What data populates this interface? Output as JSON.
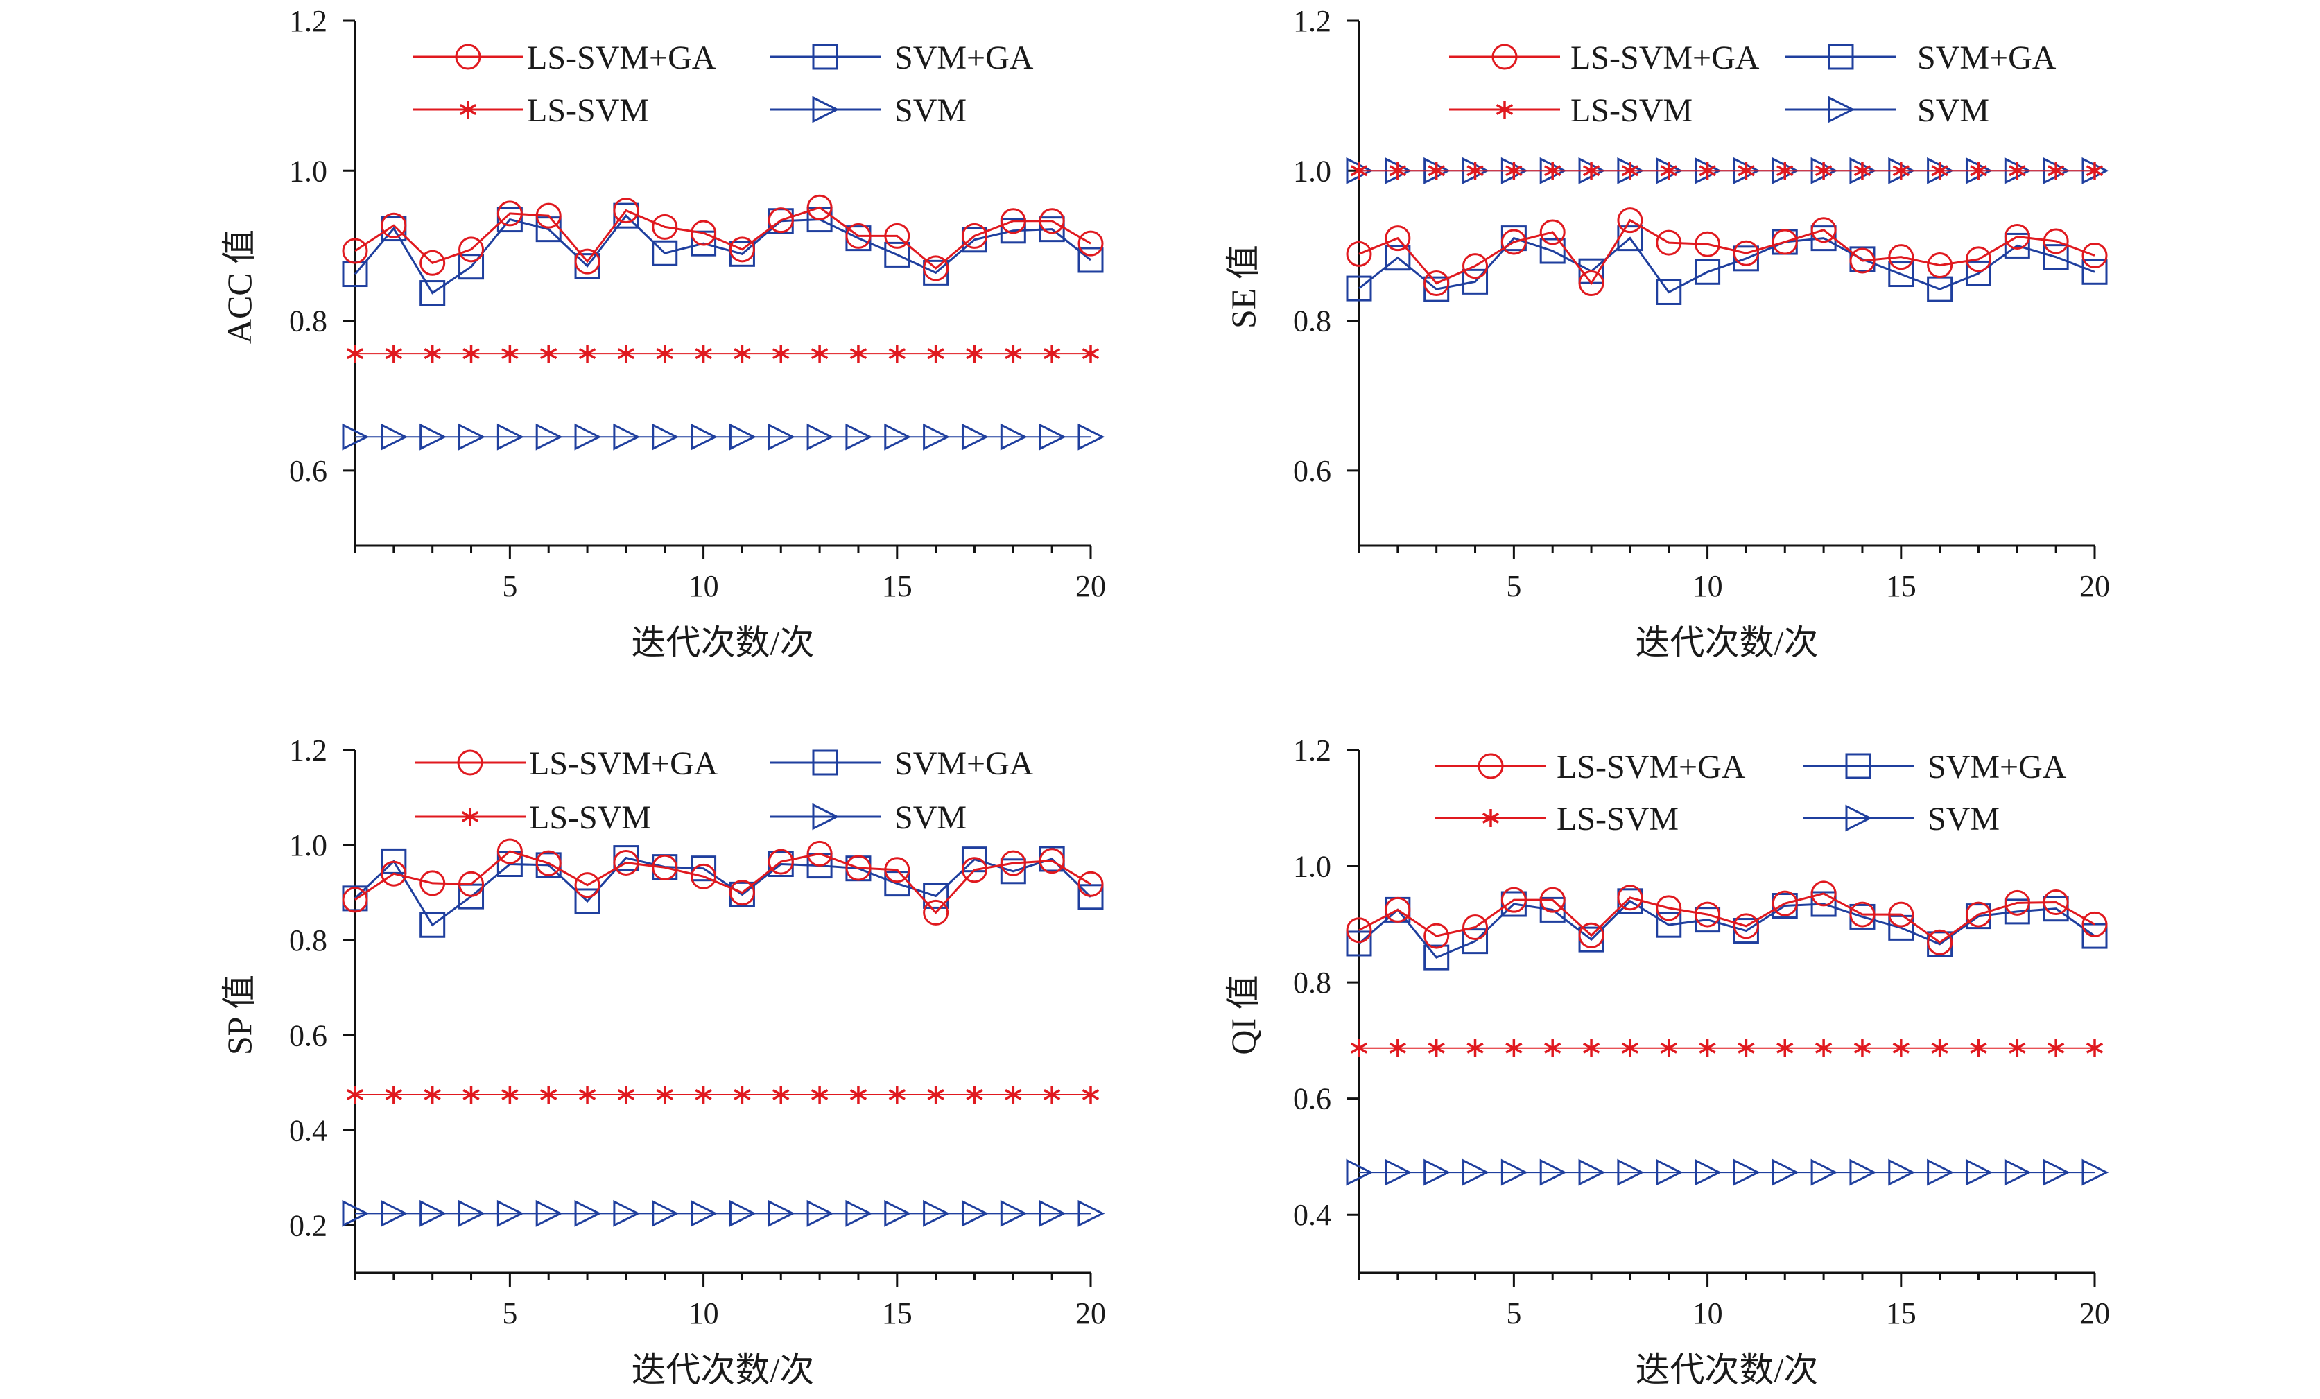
{
  "figure": {
    "colors": {
      "red": "#e0191f",
      "blue": "#1f3f9e",
      "axis": "#111111"
    }
  },
  "chart_data": [
    {
      "type": "line",
      "title": "",
      "xlabel": "迭代次数/次",
      "ylabel": "ACC 值",
      "xlim": [
        1,
        20
      ],
      "ylim": [
        0.5,
        1.2
      ],
      "xticks": [
        "5",
        "10",
        "15",
        "20"
      ],
      "yticks": [
        "0.6",
        "0.8",
        "1.0",
        "1.2"
      ],
      "x": [
        1,
        2,
        3,
        4,
        5,
        6,
        7,
        8,
        9,
        10,
        11,
        12,
        13,
        14,
        15,
        16,
        17,
        18,
        19,
        20
      ],
      "series": [
        {
          "name": "LS-SVM+GA",
          "marker": "circle",
          "color": "#e0191f",
          "values": [
            0.893,
            0.927,
            0.877,
            0.895,
            0.943,
            0.94,
            0.879,
            0.947,
            0.925,
            0.917,
            0.895,
            0.934,
            0.951,
            0.913,
            0.913,
            0.87,
            0.913,
            0.933,
            0.933,
            0.903
          ]
        },
        {
          "name": "SVM+GA",
          "marker": "square",
          "color": "#1f3f9e",
          "values": [
            0.862,
            0.923,
            0.837,
            0.872,
            0.935,
            0.922,
            0.873,
            0.94,
            0.89,
            0.903,
            0.889,
            0.933,
            0.935,
            0.91,
            0.888,
            0.864,
            0.908,
            0.92,
            0.922,
            0.881
          ]
        },
        {
          "name": "LS-SVM",
          "marker": "star",
          "color": "#e0191f",
          "values": [
            0.756,
            0.756,
            0.756,
            0.756,
            0.756,
            0.756,
            0.756,
            0.756,
            0.756,
            0.756,
            0.756,
            0.756,
            0.756,
            0.756,
            0.756,
            0.756,
            0.756,
            0.756,
            0.756,
            0.756
          ]
        },
        {
          "name": "SVM",
          "marker": "triangle-right",
          "color": "#1f3f9e",
          "values": [
            0.645,
            0.645,
            0.645,
            0.645,
            0.645,
            0.645,
            0.645,
            0.645,
            0.645,
            0.645,
            0.645,
            0.645,
            0.645,
            0.645,
            0.645,
            0.645,
            0.645,
            0.645,
            0.645,
            0.645
          ]
        }
      ]
    },
    {
      "type": "line",
      "title": "",
      "xlabel": "迭代次数/次",
      "ylabel": "SE 值",
      "xlim": [
        1,
        20
      ],
      "ylim": [
        0.5,
        1.2
      ],
      "xticks": [
        "5",
        "10",
        "15",
        "20"
      ],
      "yticks": [
        "0.6",
        "0.8",
        "1.0",
        "1.2"
      ],
      "x": [
        1,
        2,
        3,
        4,
        5,
        6,
        7,
        8,
        9,
        10,
        11,
        12,
        13,
        14,
        15,
        16,
        17,
        18,
        19,
        20
      ],
      "series": [
        {
          "name": "LS-SVM+GA",
          "marker": "circle",
          "color": "#e0191f",
          "values": [
            0.889,
            0.91,
            0.85,
            0.873,
            0.905,
            0.918,
            0.85,
            0.934,
            0.904,
            0.902,
            0.89,
            0.905,
            0.921,
            0.88,
            0.885,
            0.874,
            0.882,
            0.912,
            0.906,
            0.887
          ]
        },
        {
          "name": "SVM+GA",
          "marker": "square",
          "color": "#1f3f9e",
          "values": [
            0.843,
            0.884,
            0.842,
            0.852,
            0.91,
            0.893,
            0.866,
            0.91,
            0.838,
            0.865,
            0.883,
            0.905,
            0.91,
            0.882,
            0.862,
            0.842,
            0.863,
            0.9,
            0.885,
            0.865
          ]
        },
        {
          "name": "LS-SVM",
          "marker": "star",
          "color": "#e0191f",
          "values": [
            1.0,
            1.0,
            1.0,
            1.0,
            1.0,
            1.0,
            1.0,
            1.0,
            1.0,
            1.0,
            1.0,
            1.0,
            1.0,
            1.0,
            1.0,
            1.0,
            1.0,
            1.0,
            1.0,
            1.0
          ]
        },
        {
          "name": "SVM",
          "marker": "triangle-right",
          "color": "#1f3f9e",
          "values": [
            1.0,
            1.0,
            1.0,
            1.0,
            1.0,
            1.0,
            1.0,
            1.0,
            1.0,
            1.0,
            1.0,
            1.0,
            1.0,
            1.0,
            1.0,
            1.0,
            1.0,
            1.0,
            1.0,
            1.0
          ]
        }
      ]
    },
    {
      "type": "line",
      "title": "",
      "xlabel": "迭代次数/次",
      "ylabel": "SP 值",
      "xlim": [
        1,
        20
      ],
      "ylim": [
        0.1,
        1.2
      ],
      "xticks": [
        "5",
        "10",
        "15",
        "20"
      ],
      "yticks": [
        "0.2",
        "0.4",
        "0.6",
        "0.8",
        "1.0",
        "1.2"
      ],
      "x": [
        1,
        2,
        3,
        4,
        5,
        6,
        7,
        8,
        9,
        10,
        11,
        12,
        13,
        14,
        15,
        16,
        17,
        18,
        19,
        20
      ],
      "series": [
        {
          "name": "LS-SVM+GA",
          "marker": "circle",
          "color": "#e0191f",
          "values": [
            0.885,
            0.94,
            0.92,
            0.918,
            0.987,
            0.962,
            0.916,
            0.963,
            0.953,
            0.934,
            0.9,
            0.965,
            0.982,
            0.952,
            0.948,
            0.858,
            0.948,
            0.962,
            0.967,
            0.918
          ]
        },
        {
          "name": "SVM+GA",
          "marker": "square",
          "color": "#1f3f9e",
          "values": [
            0.888,
            0.966,
            0.832,
            0.892,
            0.96,
            0.958,
            0.882,
            0.973,
            0.954,
            0.951,
            0.896,
            0.96,
            0.957,
            0.951,
            0.919,
            0.893,
            0.97,
            0.945,
            0.971,
            0.891
          ]
        },
        {
          "name": "LS-SVM",
          "marker": "star",
          "color": "#e0191f",
          "values": [
            0.475,
            0.475,
            0.475,
            0.475,
            0.475,
            0.475,
            0.475,
            0.475,
            0.475,
            0.475,
            0.475,
            0.475,
            0.475,
            0.475,
            0.475,
            0.475,
            0.475,
            0.475,
            0.475,
            0.475
          ]
        },
        {
          "name": "SVM",
          "marker": "triangle-right",
          "color": "#1f3f9e",
          "values": [
            0.225,
            0.225,
            0.225,
            0.225,
            0.225,
            0.225,
            0.225,
            0.225,
            0.225,
            0.225,
            0.225,
            0.225,
            0.225,
            0.225,
            0.225,
            0.225,
            0.225,
            0.225,
            0.225,
            0.225
          ]
        }
      ]
    },
    {
      "type": "line",
      "title": "",
      "xlabel": "迭代次数/次",
      "ylabel": "QI 值",
      "xlim": [
        1,
        20
      ],
      "ylim": [
        0.3,
        1.2
      ],
      "xticks": [
        "5",
        "10",
        "15",
        "20"
      ],
      "yticks": [
        "0.4",
        "0.6",
        "0.8",
        "1.0",
        "1.2"
      ],
      "x": [
        1,
        2,
        3,
        4,
        5,
        6,
        7,
        8,
        9,
        10,
        11,
        12,
        13,
        14,
        15,
        16,
        17,
        18,
        19,
        20
      ],
      "series": [
        {
          "name": "LS-SVM+GA",
          "marker": "circle",
          "color": "#e0191f",
          "values": [
            0.89,
            0.925,
            0.88,
            0.895,
            0.942,
            0.942,
            0.881,
            0.946,
            0.928,
            0.917,
            0.897,
            0.936,
            0.953,
            0.917,
            0.917,
            0.869,
            0.917,
            0.937,
            0.938,
            0.9
          ]
        },
        {
          "name": "SVM+GA",
          "marker": "square",
          "color": "#1f3f9e",
          "values": [
            0.867,
            0.925,
            0.843,
            0.871,
            0.935,
            0.925,
            0.874,
            0.94,
            0.899,
            0.908,
            0.889,
            0.932,
            0.935,
            0.913,
            0.894,
            0.866,
            0.914,
            0.922,
            0.927,
            0.88
          ]
        },
        {
          "name": "LS-SVM",
          "marker": "star",
          "color": "#e0191f",
          "values": [
            0.687,
            0.687,
            0.687,
            0.687,
            0.687,
            0.687,
            0.687,
            0.687,
            0.687,
            0.687,
            0.687,
            0.687,
            0.687,
            0.687,
            0.687,
            0.687,
            0.687,
            0.687,
            0.687,
            0.687
          ]
        },
        {
          "name": "SVM",
          "marker": "triangle-right",
          "color": "#1f3f9e",
          "values": [
            0.473,
            0.473,
            0.473,
            0.473,
            0.473,
            0.473,
            0.473,
            0.473,
            0.473,
            0.473,
            0.473,
            0.473,
            0.473,
            0.473,
            0.473,
            0.473,
            0.473,
            0.473,
            0.473,
            0.473
          ]
        }
      ]
    }
  ]
}
